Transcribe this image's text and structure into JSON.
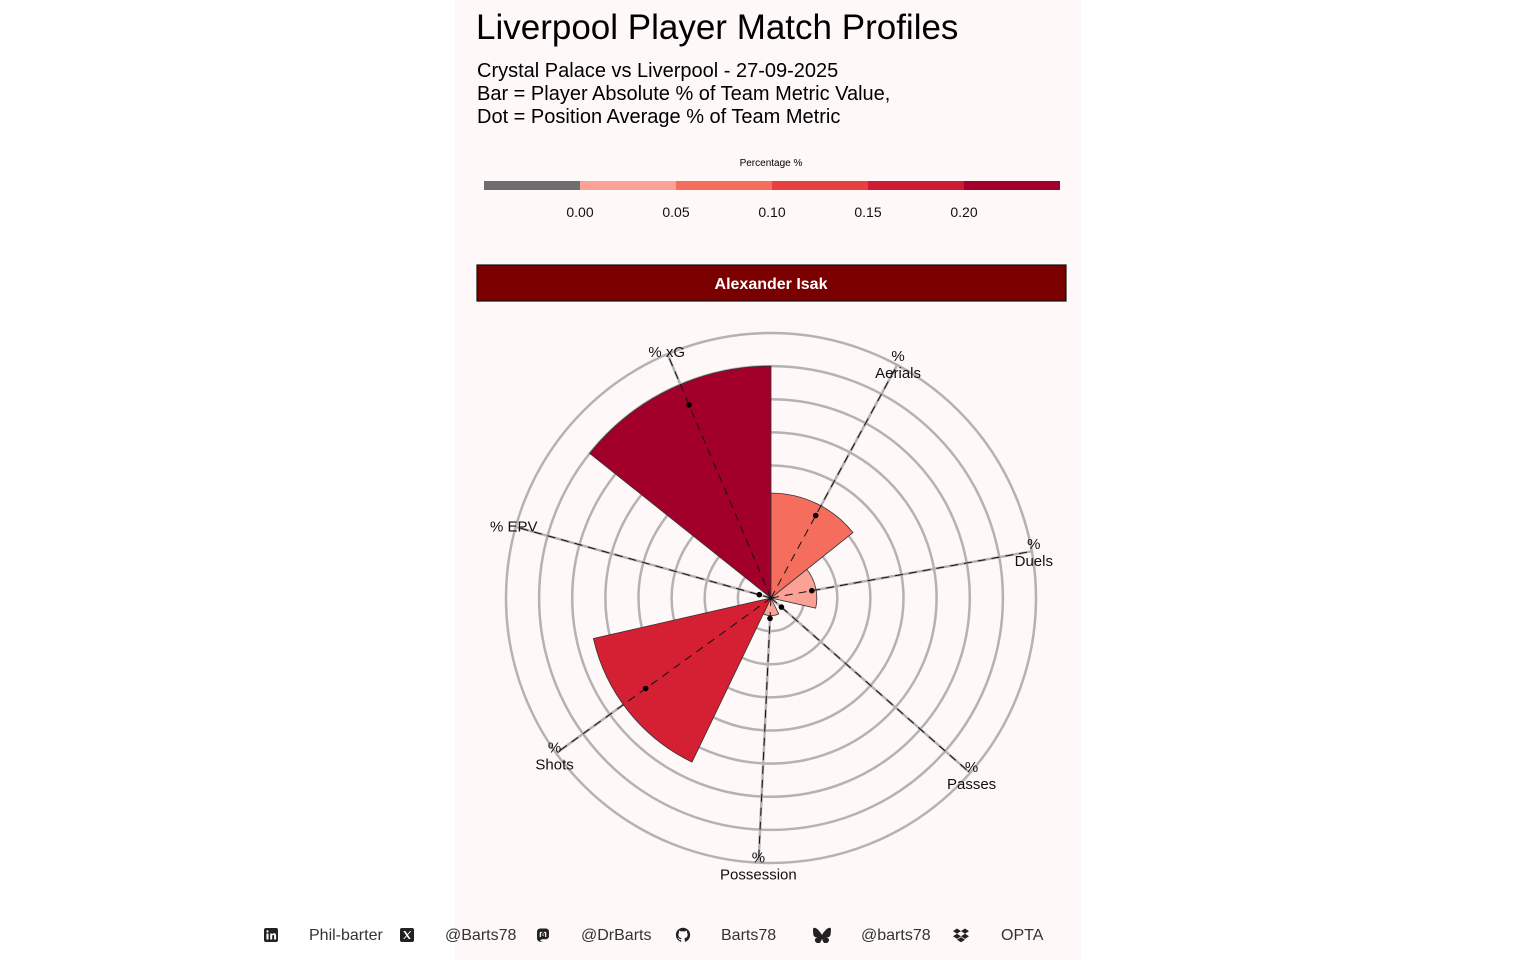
{
  "header": {
    "title": "Liverpool Player Match Profiles",
    "subtitle_lines": [
      "Crystal Palace vs Liverpool - 27-09-2025",
      "Bar = Player Absolute % of Team Metric Value,",
      "Dot = Position Average % of Team Metric"
    ]
  },
  "legend": {
    "title": "Percentage %",
    "ticks": [
      "0.00",
      "0.05",
      "0.10",
      "0.15",
      "0.20"
    ],
    "colors": [
      "#6e6e6e",
      "#fca195",
      "#f46d5d",
      "#e8403f",
      "#cc1b33",
      "#a2002b"
    ]
  },
  "chart_data": {
    "type": "polar-bar",
    "player": "Alexander Isak",
    "categories": [
      {
        "line1": "% xG",
        "line2": ""
      },
      {
        "line1": "%",
        "line2": "Aerials"
      },
      {
        "line1": "%",
        "line2": "Duels"
      },
      {
        "line1": "%",
        "line2": "Passes"
      },
      {
        "line1": "%",
        "line2": "Possession"
      },
      {
        "line1": "%",
        "line2": "Shots"
      },
      {
        "line1": "% EPV",
        "line2": ""
      }
    ],
    "series": [
      {
        "name": "Bar = Player Absolute % of Team Metric Value",
        "values": [
          0.42,
          0.19,
          0.083,
          0.0,
          0.032,
          0.33,
          0.0
        ]
      },
      {
        "name": "Dot = Position Average % of Team Metric",
        "values": [
          0.38,
          0.17,
          0.075,
          0.025,
          0.037,
          0.28,
          0.022
        ]
      }
    ],
    "bar_colors": [
      "#a2002b",
      "#f46d5d",
      "#fca195",
      "#6e6e6e",
      "#fca195",
      "#d42032",
      "#6e6e6e"
    ],
    "rmax": 0.48,
    "grid": true
  },
  "footer": {
    "items": [
      {
        "icon": "linkedin-icon",
        "text": "Phil-barter"
      },
      {
        "icon": "x-twitter-icon",
        "text": "@Barts78"
      },
      {
        "icon": "mastodon-icon",
        "text": "@DrBarts"
      },
      {
        "icon": "github-icon",
        "text": "Barts78"
      },
      {
        "icon": "bluesky-icon",
        "text": "@barts78"
      },
      {
        "icon": "dropbox-icon",
        "text": "OPTA"
      }
    ]
  }
}
